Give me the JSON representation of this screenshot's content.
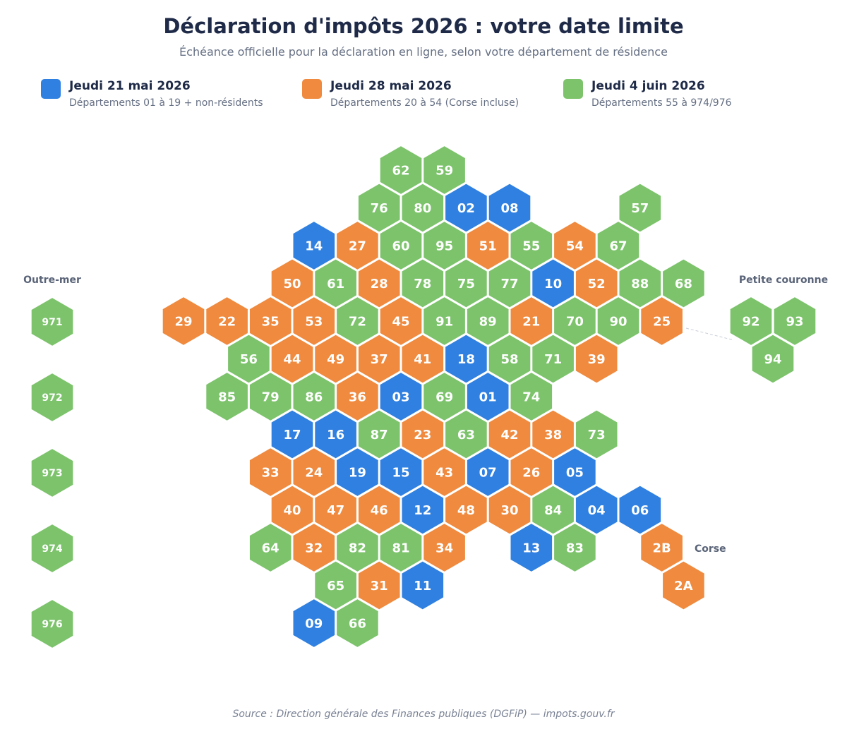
{
  "title": "Déclaration d'impôts 2026 : votre date limite",
  "subtitle": "Échéance officielle pour la déclaration en ligne, selon votre département de résidence",
  "colors": {
    "blue": "#2f80e0",
    "orange": "#ef8a3e",
    "green": "#7cc36b"
  },
  "legend": [
    {
      "color": "blue",
      "label": "Jeudi 21 mai 2026",
      "desc": "Départements 01 à 19 + non-résidents"
    },
    {
      "color": "orange",
      "label": "Jeudi 28 mai 2026",
      "desc": "Départements 20 à 54 (Corse incluse)"
    },
    {
      "color": "green",
      "label": "Jeudi 4 juin 2026",
      "desc": "Départements 55 à 974/976"
    }
  ],
  "group_labels": {
    "outremer": "Outre-mer",
    "petite_couronne": "Petite couronne",
    "corse": "Corse"
  },
  "source": "Source : Direction générale des Finances publiques (DGFiP) — impots.gouv.fr",
  "map_rows": [
    {
      "row": 0,
      "start": 5,
      "cells": [
        "62",
        "59"
      ]
    },
    {
      "row": 1,
      "start": 4,
      "cells": [
        "76",
        "80",
        "02",
        "08",
        null,
        null,
        "57"
      ]
    },
    {
      "row": 2,
      "start": 3,
      "cells": [
        "14",
        "27",
        "60",
        "95",
        "51",
        "55",
        "54",
        "67"
      ]
    },
    {
      "row": 3,
      "start": 2,
      "cells": [
        "50",
        "61",
        "28",
        "78",
        "75",
        "77",
        "10",
        "52",
        "88",
        "68"
      ]
    },
    {
      "row": 4,
      "start": 0,
      "cells": [
        "29",
        "22",
        "35",
        "53",
        "72",
        "45",
        "91",
        "89",
        "21",
        "70",
        "90",
        "25"
      ]
    },
    {
      "row": 5,
      "start": 1,
      "cells": [
        "56",
        "44",
        "49",
        "37",
        "41",
        "18",
        "58",
        "71",
        "39"
      ]
    },
    {
      "row": 6,
      "start": 1,
      "cells": [
        "85",
        "79",
        "86",
        "36",
        "03",
        "69",
        "01",
        "74"
      ]
    },
    {
      "row": 7,
      "start": 2,
      "cells": [
        "17",
        "16",
        "87",
        "23",
        "63",
        "42",
        "38",
        "73"
      ]
    },
    {
      "row": 8,
      "start": 2,
      "cells": [
        "33",
        "24",
        "19",
        "15",
        "43",
        "07",
        "26",
        "05"
      ]
    },
    {
      "row": 9,
      "start": 2,
      "cells": [
        "40",
        "47",
        "46",
        "12",
        "48",
        "30",
        "84",
        "04",
        "06"
      ]
    },
    {
      "row": 10,
      "start": 2,
      "cells": [
        "64",
        "32",
        "82",
        "81",
        "34",
        null,
        "13",
        "83"
      ]
    },
    {
      "row": 11,
      "start": 3,
      "cells": [
        "65",
        "31",
        "11"
      ]
    },
    {
      "row": 12,
      "start": 3,
      "cells": [
        "09",
        "66"
      ]
    }
  ],
  "corse": [
    "2B",
    "2A"
  ],
  "petite_couronne": [
    "92",
    "93",
    "94"
  ],
  "outremer": [
    "971",
    "972",
    "973",
    "974",
    "976"
  ]
}
